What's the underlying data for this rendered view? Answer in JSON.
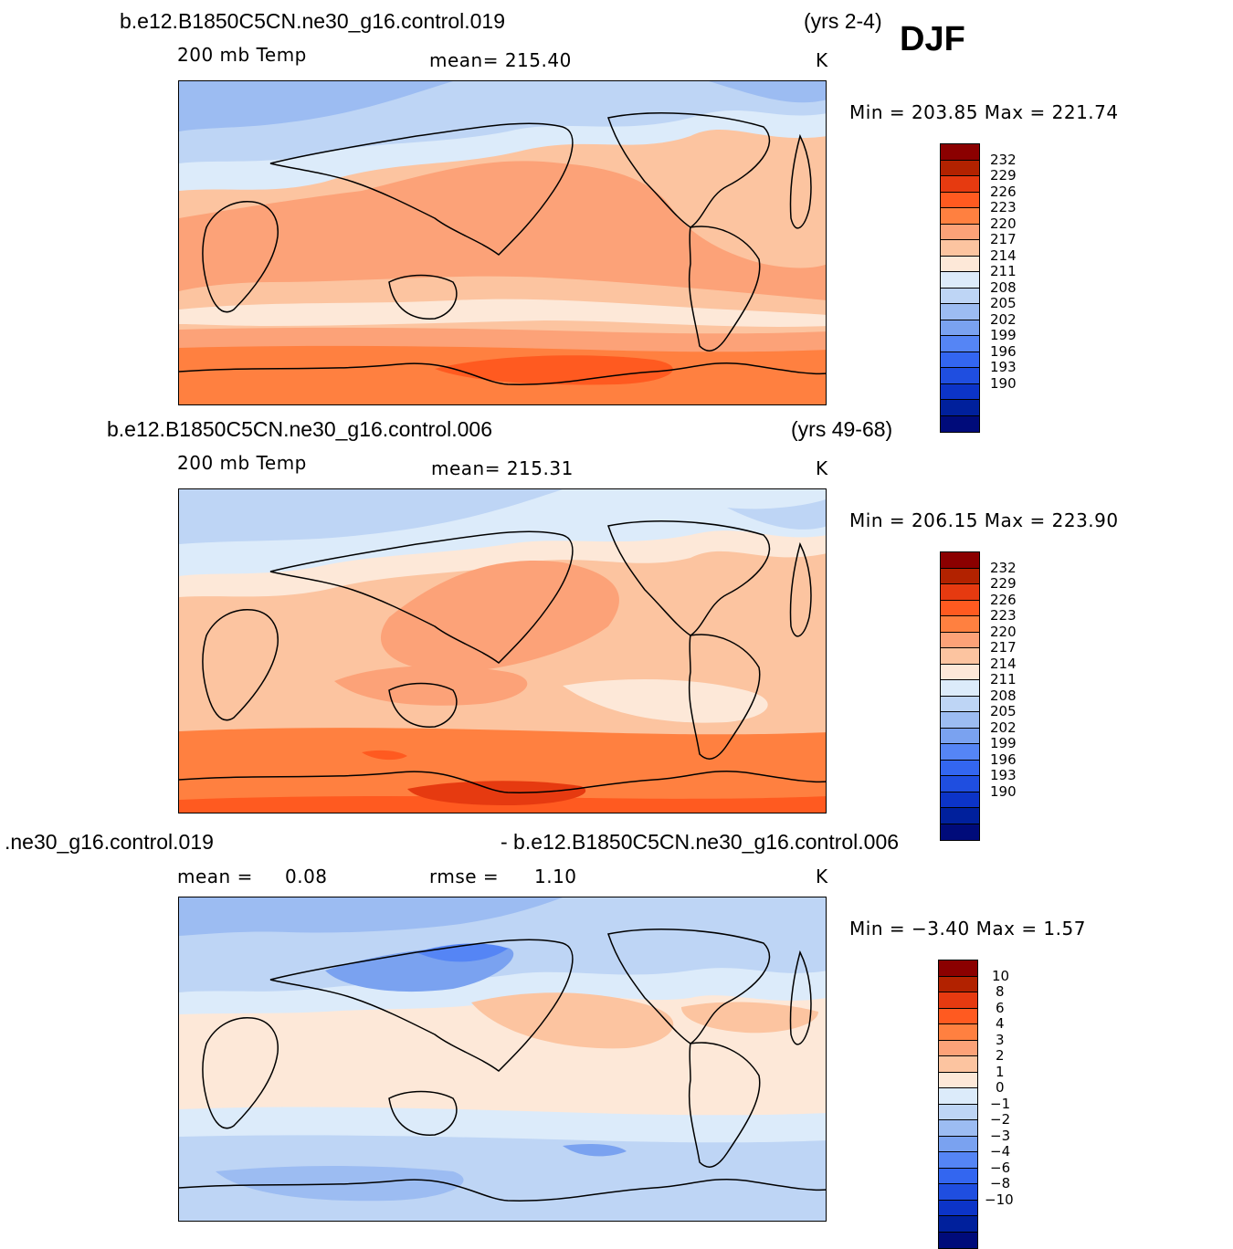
{
  "season": "DJF",
  "units": "K",
  "palette_abs": [
    "#8b0000",
    "#b22200",
    "#e63a10",
    "#ff5a20",
    "#ff8040",
    "#fca278",
    "#fcc4a0",
    "#fde8d8",
    "#dcebfa",
    "#bed5f5",
    "#9cbcf2",
    "#7aa2f0",
    "#5585f5",
    "#3366f0",
    "#1f4ee0",
    "#0c34c8",
    "#00209c",
    "#000b7a"
  ],
  "palette_diff": [
    "#8b0000",
    "#b22200",
    "#e63a10",
    "#ff5a20",
    "#ff8040",
    "#fca278",
    "#fcc4a0",
    "#fde8d8",
    "#dcebfa",
    "#bed5f5",
    "#9cbcf2",
    "#7aa2f0",
    "#5585f5",
    "#3366f0",
    "#1f4ee0",
    "#0c34c8",
    "#00209c",
    "#000b7a"
  ],
  "panels": [
    {
      "case": "b.e12.B1850C5CN.ne30_g16.control.019",
      "years": "(yrs 2-4)",
      "field": "200 mb Temp",
      "stat": "mean= 215.40",
      "units": "K",
      "minmax": "Min  =  203.85  Max  =  221.74",
      "levels": [
        "232",
        "229",
        "226",
        "223",
        "220",
        "217",
        "214",
        "211",
        "208",
        "205",
        "202",
        "199",
        "196",
        "193",
        "190"
      ]
    },
    {
      "case": "b.e12.B1850C5CN.ne30_g16.control.006",
      "years": "(yrs 49-68)",
      "field": "200 mb Temp",
      "stat": "mean= 215.31",
      "units": "K",
      "minmax": "Min  =  206.15  Max  =  223.90",
      "levels": [
        "232",
        "229",
        "226",
        "223",
        "220",
        "217",
        "214",
        "211",
        "208",
        "205",
        "202",
        "199",
        "196",
        "193",
        "190"
      ]
    },
    {
      "case_left": ".ne30_g16.control.019",
      "case_right": "- b.e12.B1850C5CN.ne30_g16.control.006",
      "mean_label": "mean  =",
      "mean_value": "0.08",
      "rmse_label": "rmse  =",
      "rmse_value": "1.10",
      "units": "K",
      "minmax": "Min  =    −3.40  Max  =      1.57",
      "levels": [
        "10",
        "8",
        "6",
        "4",
        "3",
        "2",
        "1",
        "0",
        "−1",
        "−2",
        "−3",
        "−4",
        "−6",
        "−8",
        "−10"
      ]
    }
  ]
}
